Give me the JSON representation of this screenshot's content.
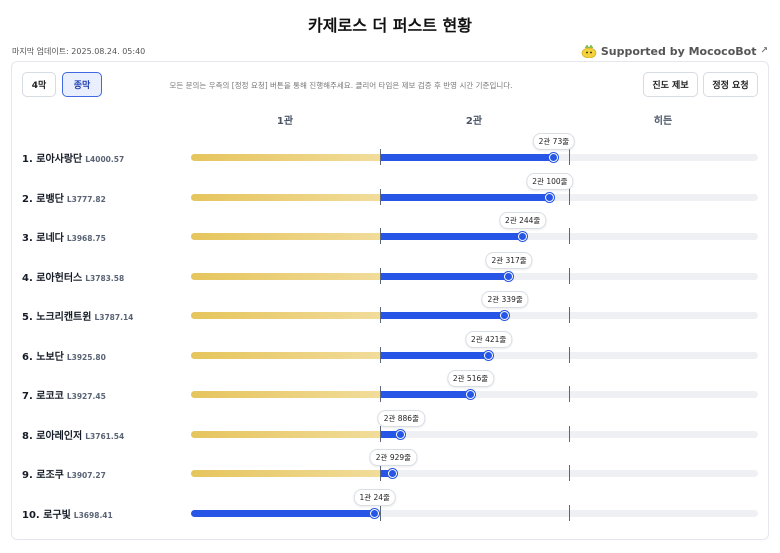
{
  "title": "카제로스 더 퍼스트 현황",
  "last_updated": "마지막 업데이트: 2025.08.24. 05:40",
  "supported_by": "Supported by MococoBot",
  "tabs": [
    {
      "label": "4막",
      "active": false
    },
    {
      "label": "종막",
      "active": true
    }
  ],
  "notice": "모든 문의는 우측의 [정정 요청] 버튼을 통해 진행해주세요. 클리어 타임은 제보 검증 후 반영 시간 기준입니다.",
  "actions": {
    "report": "진도 제보",
    "correction": "정정 요청"
  },
  "columns": [
    "1관",
    "2관",
    "히든"
  ],
  "colors": {
    "gold": "#e6c55d",
    "blue": "#2756e6",
    "track": "#eef0f4"
  },
  "guilds": [
    {
      "rank": "1.",
      "name": "로아사랑단",
      "level": "L4000.57",
      "progress": 0.64,
      "tooltip": "2관 73줄"
    },
    {
      "rank": "2.",
      "name": "로뱅단",
      "level": "L3777.82",
      "progress": 0.633,
      "tooltip": "2관 100줄"
    },
    {
      "rank": "3.",
      "name": "로네다",
      "level": "L3968.75",
      "progress": 0.585,
      "tooltip": "2관 244줄"
    },
    {
      "rank": "4.",
      "name": "로아헌터스",
      "level": "L3783.58",
      "progress": 0.561,
      "tooltip": "2관 317줄"
    },
    {
      "rank": "5.",
      "name": "노크리캔트윈",
      "level": "L3787.14",
      "progress": 0.554,
      "tooltip": "2관 339줄"
    },
    {
      "rank": "6.",
      "name": "노보단",
      "level": "L3925.80",
      "progress": 0.525,
      "tooltip": "2관 421줄"
    },
    {
      "rank": "7.",
      "name": "로코코",
      "level": "L3927.45",
      "progress": 0.493,
      "tooltip": "2관 516줄"
    },
    {
      "rank": "8.",
      "name": "로아레인저",
      "level": "L3761.54",
      "progress": 0.371,
      "tooltip": "2관 886줄"
    },
    {
      "rank": "9.",
      "name": "로조쿠",
      "level": "L3907.27",
      "progress": 0.357,
      "tooltip": "2관 929줄"
    },
    {
      "rank": "10.",
      "name": "로구빛",
      "level": "L3698.41",
      "progress": 0.324,
      "tooltip": "1관 24줄"
    }
  ]
}
